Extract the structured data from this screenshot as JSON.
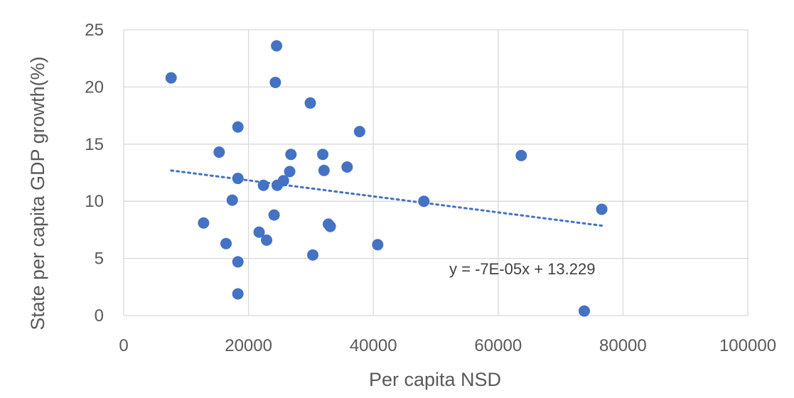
{
  "chart_data": {
    "type": "scatter",
    "xlabel": "Per capita NSD",
    "ylabel": "State per capita GDP growth(%)",
    "xlim": [
      0,
      100000
    ],
    "ylim": [
      0,
      25
    ],
    "x_ticks": [
      "0",
      "20000",
      "40000",
      "60000",
      "80000",
      "100000"
    ],
    "y_ticks": [
      "0",
      "5",
      "10",
      "15",
      "20",
      "25"
    ],
    "grid": true,
    "legend": "none",
    "series": [
      {
        "color": "#4472c4",
        "points": [
          {
            "x": 7600,
            "y": 20.8
          },
          {
            "x": 12800,
            "y": 8.1
          },
          {
            "x": 15300,
            "y": 14.3
          },
          {
            "x": 16400,
            "y": 6.3
          },
          {
            "x": 17400,
            "y": 10.1
          },
          {
            "x": 18300,
            "y": 16.5
          },
          {
            "x": 18300,
            "y": 12.0
          },
          {
            "x": 18300,
            "y": 4.7
          },
          {
            "x": 18300,
            "y": 1.9
          },
          {
            "x": 21700,
            "y": 7.3
          },
          {
            "x": 22400,
            "y": 11.4
          },
          {
            "x": 22900,
            "y": 6.6
          },
          {
            "x": 24100,
            "y": 8.8
          },
          {
            "x": 24300,
            "y": 20.4
          },
          {
            "x": 24500,
            "y": 23.6
          },
          {
            "x": 24600,
            "y": 11.4
          },
          {
            "x": 25600,
            "y": 11.8
          },
          {
            "x": 26600,
            "y": 12.6
          },
          {
            "x": 26800,
            "y": 14.1
          },
          {
            "x": 29900,
            "y": 18.6
          },
          {
            "x": 30300,
            "y": 5.3
          },
          {
            "x": 31900,
            "y": 14.1
          },
          {
            "x": 32100,
            "y": 12.7
          },
          {
            "x": 32800,
            "y": 8.0
          },
          {
            "x": 33100,
            "y": 7.8
          },
          {
            "x": 35800,
            "y": 13.0
          },
          {
            "x": 37800,
            "y": 16.1
          },
          {
            "x": 40700,
            "y": 6.2
          },
          {
            "x": 48100,
            "y": 10.0
          },
          {
            "x": 63700,
            "y": 14.0
          },
          {
            "x": 73800,
            "y": 0.4
          },
          {
            "x": 76600,
            "y": 9.3
          }
        ]
      }
    ],
    "trendline": {
      "type": "linear",
      "slope": -7e-05,
      "intercept": 13.229,
      "x_from": 7600,
      "x_to": 76600,
      "equation_label": "y = -7E-05x + 13.229"
    }
  }
}
